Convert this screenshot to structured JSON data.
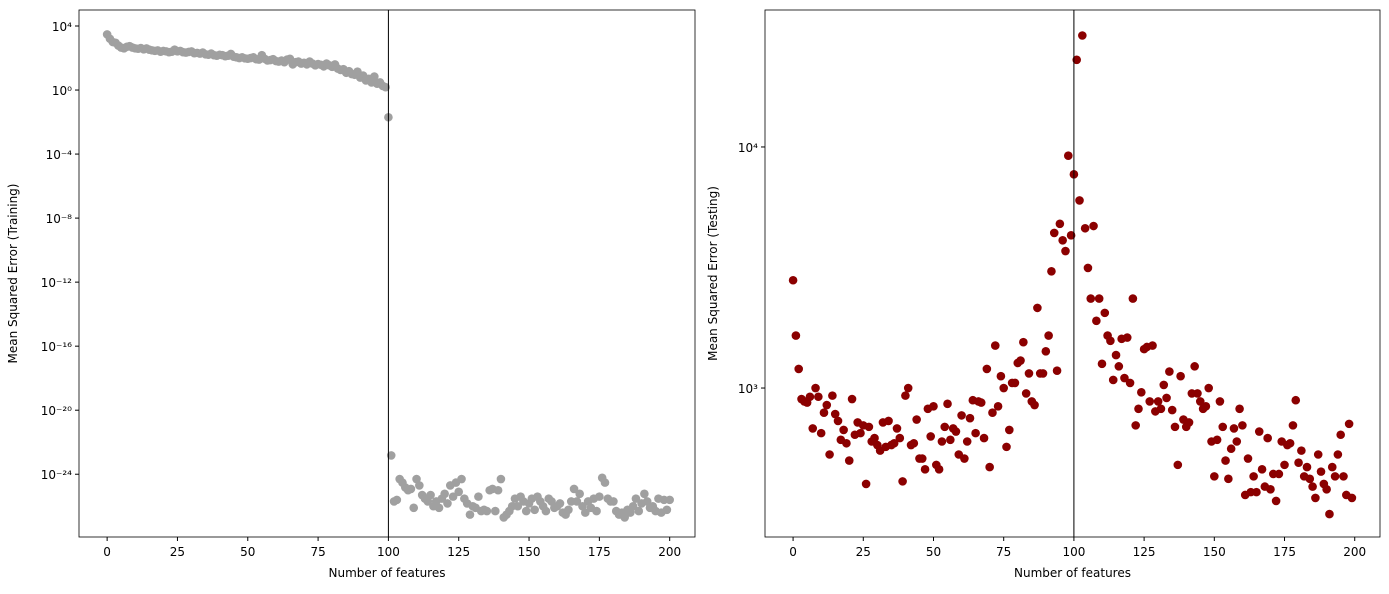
{
  "chart_data": [
    {
      "type": "scatter",
      "xlabel": "Number of features",
      "ylabel": "Mean Squared Error (Training)",
      "color": "#a0a0a0",
      "yscale": "log",
      "vline": 100,
      "xlim": [
        -10,
        209
      ],
      "xticks": [
        0,
        25,
        50,
        75,
        100,
        125,
        150,
        175,
        200
      ],
      "ylim": [
        1.2e-28,
        100000
      ],
      "yticks": [
        {
          "value": 10000,
          "label": "10⁴"
        },
        {
          "value": 1,
          "label": "10⁰"
        },
        {
          "value": 0.0001,
          "label": "10⁻⁴"
        },
        {
          "value": 1e-08,
          "label": "10⁻⁸"
        },
        {
          "value": 1e-12,
          "label": "10⁻¹²"
        },
        {
          "value": 1e-16,
          "label": "10⁻¹⁶"
        },
        {
          "value": 1e-20,
          "label": "10⁻²⁰"
        },
        {
          "value": 1e-24,
          "label": "10⁻²⁴"
        }
      ],
      "x": [
        0,
        1,
        2,
        3,
        4,
        5,
        6,
        7,
        8,
        9,
        10,
        11,
        12,
        13,
        14,
        15,
        16,
        17,
        18,
        19,
        20,
        21,
        22,
        23,
        24,
        25,
        26,
        27,
        28,
        29,
        30,
        31,
        32,
        33,
        34,
        35,
        36,
        37,
        38,
        39,
        40,
        41,
        42,
        43,
        44,
        45,
        46,
        47,
        48,
        49,
        50,
        51,
        52,
        53,
        54,
        55,
        56,
        57,
        58,
        59,
        60,
        61,
        62,
        63,
        64,
        65,
        66,
        67,
        68,
        69,
        70,
        71,
        72,
        73,
        74,
        75,
        76,
        77,
        78,
        79,
        80,
        81,
        82,
        83,
        84,
        85,
        86,
        87,
        88,
        89,
        90,
        91,
        92,
        93,
        94,
        95,
        96,
        97,
        98,
        99,
        100,
        101,
        102,
        103,
        104,
        105,
        106,
        107,
        108,
        109,
        110,
        111,
        112,
        113,
        114,
        115,
        116,
        117,
        118,
        119,
        120,
        121,
        122,
        123,
        124,
        125,
        126,
        127,
        128,
        129,
        130,
        131,
        132,
        133,
        134,
        135,
        136,
        137,
        138,
        139,
        140,
        141,
        142,
        143,
        144,
        145,
        146,
        147,
        148,
        149,
        150,
        151,
        152,
        153,
        154,
        155,
        156,
        157,
        158,
        159,
        160,
        161,
        162,
        163,
        164,
        165,
        166,
        167,
        168,
        169,
        170,
        171,
        172,
        173,
        174,
        175,
        176,
        177,
        178,
        179,
        180,
        181,
        182,
        183,
        184,
        185,
        186,
        187,
        188,
        189,
        190,
        191,
        192,
        193,
        194,
        195,
        196,
        197,
        198,
        199,
        200
      ],
      "values": [
        3000,
        1600,
        1000,
        900,
        600,
        450,
        400,
        500,
        550,
        450,
        400,
        380,
        420,
        350,
        400,
        330,
        300,
        280,
        300,
        250,
        280,
        260,
        230,
        250,
        330,
        260,
        280,
        230,
        220,
        240,
        260,
        200,
        210,
        190,
        220,
        170,
        160,
        190,
        150,
        140,
        160,
        150,
        130,
        140,
        180,
        120,
        110,
        100,
        110,
        95,
        90,
        100,
        110,
        85,
        80,
        150,
        90,
        70,
        75,
        85,
        65,
        60,
        70,
        55,
        80,
        90,
        40,
        55,
        60,
        45,
        50,
        40,
        60,
        45,
        35,
        42,
        38,
        30,
        45,
        35,
        28,
        40,
        22,
        18,
        20,
        12,
        15,
        10,
        9,
        14,
        6,
        8,
        4,
        5,
        3,
        7,
        2.5,
        3,
        1.8,
        1.5,
        0.02,
        1.5e-23,
        2e-26,
        2.5e-26,
        5e-25,
        3e-25,
        1.5e-25,
        1e-25,
        1.2e-25,
        8e-27,
        5e-25,
        2e-25,
        5e-26,
        3e-26,
        2e-26,
        5e-26,
        1e-26,
        2e-26,
        8e-27,
        3e-26,
        6e-26,
        1.5e-26,
        2e-25,
        4e-26,
        3e-25,
        8e-26,
        5e-25,
        3e-26,
        1.5e-26,
        3e-27,
        1e-26,
        8e-27,
        4e-26,
        5e-27,
        6e-27,
        5e-27,
        1e-25,
        1.2e-25,
        5e-27,
        1e-25,
        5e-25,
        2e-27,
        3e-27,
        5e-27,
        1e-26,
        3e-26,
        1e-26,
        4e-26,
        2e-26,
        5e-27,
        1.5e-26,
        3e-26,
        6e-27,
        4e-26,
        2e-26,
        1e-26,
        5e-27,
        3e-26,
        2e-26,
        8e-27,
        1e-26,
        1.5e-26,
        4e-27,
        3e-27,
        6e-27,
        2e-26,
        1.2e-25,
        2e-26,
        6e-26,
        1e-26,
        4e-27,
        2e-26,
        8e-27,
        3e-26,
        5e-27,
        4e-26,
        6e-25,
        3e-25,
        3e-26,
        2e-26,
        2e-26,
        5e-27,
        3e-27,
        4e-27,
        2e-27,
        6e-27,
        4e-27,
        1e-26,
        3e-26,
        5e-27,
        1.5e-26,
        6e-26,
        2e-26,
        8e-27,
        1e-26,
        5e-27,
        3e-26,
        4e-27,
        2.5e-26,
        6e-27,
        2.5e-26
      ]
    },
    {
      "type": "scatter",
      "xlabel": "Number of features",
      "ylabel": "Mean Squared Error (Testing)",
      "color": "#8b0000",
      "yscale": "log",
      "vline": 100,
      "xlim": [
        -10,
        209
      ],
      "xticks": [
        0,
        25,
        50,
        75,
        100,
        125,
        150,
        175,
        200
      ],
      "ylim": [
        241,
        37000
      ],
      "yticks": [
        {
          "value": 1000,
          "label": "10³"
        },
        {
          "value": 10000,
          "label": "10⁴"
        }
      ],
      "x": [
        0,
        1,
        2,
        3,
        4,
        5,
        6,
        7,
        8,
        9,
        10,
        11,
        12,
        13,
        14,
        15,
        16,
        17,
        18,
        19,
        20,
        21,
        22,
        23,
        24,
        25,
        26,
        27,
        28,
        29,
        30,
        31,
        32,
        33,
        34,
        35,
        36,
        37,
        38,
        39,
        40,
        41,
        42,
        43,
        44,
        45,
        46,
        47,
        48,
        49,
        50,
        51,
        52,
        53,
        54,
        55,
        56,
        57,
        58,
        59,
        60,
        61,
        62,
        63,
        64,
        65,
        66,
        67,
        68,
        69,
        70,
        71,
        72,
        73,
        74,
        75,
        76,
        77,
        78,
        79,
        80,
        81,
        82,
        83,
        84,
        85,
        86,
        87,
        88,
        89,
        90,
        91,
        92,
        93,
        94,
        95,
        96,
        97,
        98,
        99,
        100,
        101,
        102,
        103,
        104,
        105,
        106,
        107,
        108,
        109,
        110,
        111,
        112,
        113,
        114,
        115,
        116,
        117,
        118,
        119,
        120,
        121,
        122,
        123,
        124,
        125,
        126,
        127,
        128,
        129,
        130,
        131,
        132,
        133,
        134,
        135,
        136,
        137,
        138,
        139,
        140,
        141,
        142,
        143,
        144,
        145,
        146,
        147,
        148,
        149,
        150,
        151,
        152,
        153,
        154,
        155,
        156,
        157,
        158,
        159,
        160,
        161,
        162,
        163,
        164,
        165,
        166,
        167,
        168,
        169,
        170,
        171,
        172,
        173,
        174,
        175,
        176,
        177,
        178,
        179,
        180,
        181,
        182,
        183,
        184,
        185,
        186,
        187,
        188,
        189,
        190,
        191,
        192,
        193,
        194,
        195,
        196,
        197,
        198,
        199
      ],
      "values": [
        2800,
        1650,
        1200,
        900,
        880,
        870,
        920,
        680,
        1000,
        920,
        650,
        790,
        850,
        530,
        930,
        780,
        730,
        610,
        670,
        590,
        500,
        900,
        640,
        720,
        650,
        700,
        400,
        690,
        600,
        620,
        580,
        550,
        720,
        570,
        730,
        580,
        590,
        680,
        620,
        410,
        930,
        1000,
        580,
        590,
        740,
        510,
        510,
        460,
        820,
        630,
        840,
        480,
        460,
        600,
        690,
        860,
        610,
        680,
        660,
        530,
        770,
        510,
        600,
        750,
        890,
        650,
        880,
        870,
        620,
        1200,
        470,
        790,
        1500,
        840,
        1120,
        1000,
        570,
        670,
        1050,
        1050,
        1270,
        1300,
        1550,
        950,
        1150,
        880,
        850,
        2150,
        1150,
        1150,
        1420,
        1650,
        3050,
        4400,
        1180,
        4800,
        4100,
        3700,
        9200,
        4300,
        7700,
        23000,
        6000,
        29000,
        4600,
        3150,
        2350,
        4700,
        1900,
        2350,
        1260,
        2050,
        1650,
        1570,
        1080,
        1370,
        1230,
        1600,
        1100,
        1620,
        1050,
        2350,
        700,
        820,
        960,
        1450,
        1480,
        880,
        1500,
        800,
        880,
        820,
        1030,
        910,
        1170,
        810,
        690,
        480,
        1120,
        740,
        690,
        720,
        950,
        1230,
        950,
        880,
        820,
        840,
        1000,
        600,
        430,
        610,
        880,
        690,
        500,
        420,
        560,
        680,
        600,
        820,
        700,
        360,
        510,
        370,
        430,
        370,
        660,
        460,
        390,
        620,
        380,
        440,
        340,
        440,
        600,
        480,
        580,
        590,
        700,
        890,
        490,
        550,
        430,
        470,
        420,
        390,
        350,
        530,
        450,
        400,
        380,
        300,
        470,
        430,
        530,
        640,
        430,
        360,
        710,
        350
      ]
    }
  ]
}
